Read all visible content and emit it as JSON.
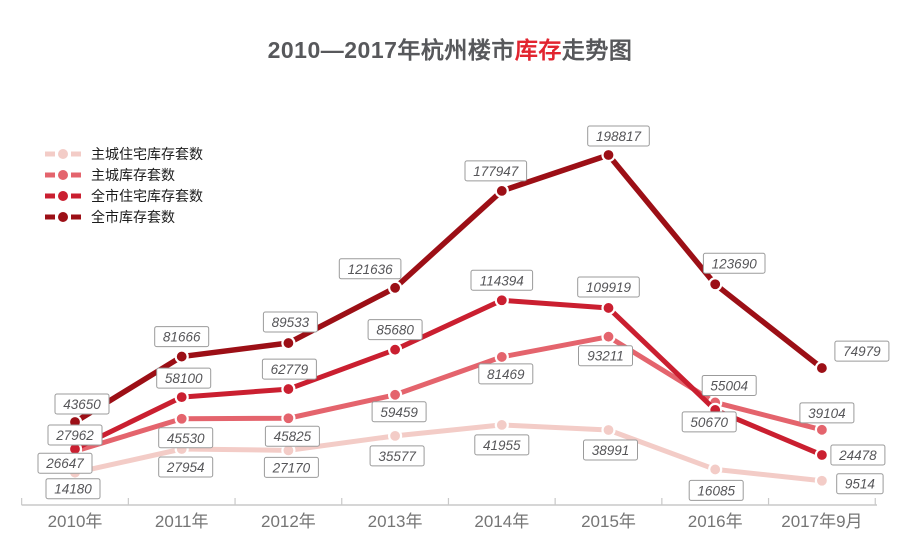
{
  "title": {
    "prefix": "2010—2017年杭州楼市",
    "highlight": "库存",
    "suffix": "走势图"
  },
  "colors": {
    "title_text": "#57585b",
    "title_highlight": "#e2242f",
    "axis": "#c9c9c9",
    "axis_label_text": "#757575",
    "data_label_text": "#565659",
    "data_label_border": "#9b9b9b",
    "data_label_bg": "#ffffff",
    "point_ring": "#ffffff"
  },
  "legend": {
    "position": "top-left",
    "items": [
      {
        "label": "主城住宅库存套数"
      },
      {
        "label": "主城库存套数"
      },
      {
        "label": "全市住宅库存套数"
      },
      {
        "label": "全市库存套数"
      }
    ]
  },
  "chart_data": {
    "type": "line",
    "title": "2010—2017年杭州楼市库存走势图",
    "xlabel": "",
    "ylabel": "",
    "categories": [
      "2010年",
      "2011年",
      "2012年",
      "2013年",
      "2014年",
      "2015年",
      "2016年",
      "2017年9月"
    ],
    "series": [
      {
        "name": "主城住宅库存套数",
        "color": "#f3ccc7",
        "values": [
          14180,
          27954,
          27170,
          35577,
          41955,
          38991,
          16085,
          9514
        ]
      },
      {
        "name": "主城库存套数",
        "color": "#e4646d",
        "values": [
          26647,
          45530,
          45825,
          59459,
          81469,
          93211,
          55004,
          39104
        ]
      },
      {
        "name": "全市住宅库存套数",
        "color": "#ca1f30",
        "values": [
          27962,
          58100,
          62779,
          85680,
          114394,
          109919,
          50670,
          24478
        ]
      },
      {
        "name": "全市库存套数",
        "color": "#9c0f16",
        "values": [
          43650,
          81666,
          89533,
          121636,
          177947,
          198817,
          123690,
          74979
        ]
      }
    ],
    "ylim": [
      0,
      210000
    ],
    "grid": false,
    "data_labels": true,
    "legend_position": "top-left"
  }
}
